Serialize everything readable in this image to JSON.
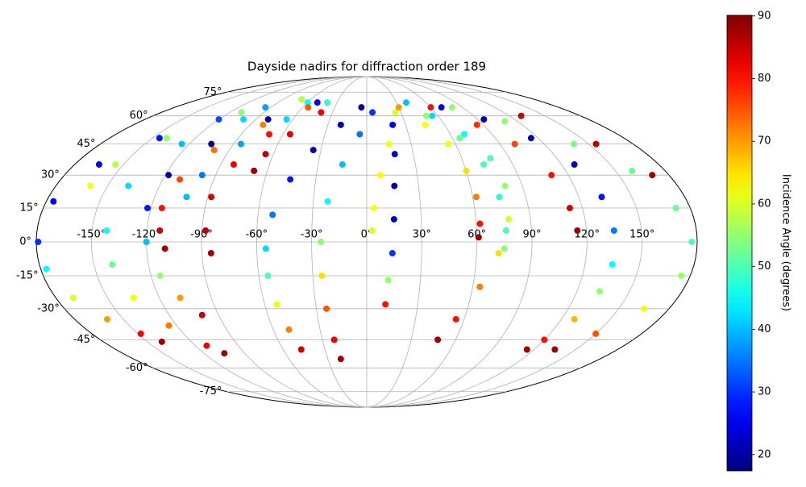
{
  "chart_data": {
    "type": "scatter",
    "projection": "mollweide",
    "colormap": "jet",
    "title": "Dayside nadirs for diffraction order 189",
    "colorbar_label": "Incidence Angle (degrees)",
    "clim": [
      17.4,
      90.1
    ],
    "cticks": [
      20,
      30,
      40,
      50,
      60,
      70,
      80,
      90
    ],
    "grid": true,
    "xticks": [
      {
        "value": -150,
        "label": "-150°"
      },
      {
        "value": -120,
        "label": "-120°"
      },
      {
        "value": -90,
        "label": "-90°"
      },
      {
        "value": -60,
        "label": "-60°"
      },
      {
        "value": -30,
        "label": "-30°"
      },
      {
        "value": 0,
        "label": "0°"
      },
      {
        "value": 30,
        "label": "30°"
      },
      {
        "value": 60,
        "label": "60°"
      },
      {
        "value": 90,
        "label": "90°"
      },
      {
        "value": 120,
        "label": "120°"
      },
      {
        "value": 150,
        "label": "150°"
      }
    ],
    "yticks": [
      {
        "value": -75,
        "label": "-75°"
      },
      {
        "value": -60,
        "label": "-60°"
      },
      {
        "value": -45,
        "label": "-45°"
      },
      {
        "value": -30,
        "label": "-30°"
      },
      {
        "value": -15,
        "label": "-15°"
      },
      {
        "value": 0,
        "label": "0°"
      },
      {
        "value": 15,
        "label": "15°"
      },
      {
        "value": 30,
        "label": "30°"
      },
      {
        "value": 45,
        "label": "45°"
      },
      {
        "value": 60,
        "label": "60°"
      },
      {
        "value": 75,
        "label": "75°"
      }
    ],
    "series": [
      {
        "x": [
          -95,
          -120,
          -145,
          -165,
          -176,
          -179,
          -177,
          -170,
          -160,
          -148,
          -140
        ],
        "y": [
          65,
          58,
          48,
          35,
          18,
          0,
          -12,
          -25,
          -35,
          -42,
          -46
        ],
        "values": [
          38,
          32,
          28,
          26,
          26,
          30,
          45,
          60,
          70,
          82,
          88
        ]
      },
      {
        "x": [
          -70,
          -110,
          -140,
          -155,
          -160
        ],
        "y": [
          70,
          62,
          48,
          35,
          25
        ],
        "values": [
          58,
          55,
          55,
          58,
          62
        ]
      },
      {
        "x": [
          -60,
          -100,
          -125,
          -138,
          -142,
          -140,
          -135,
          -125,
          -112,
          -105
        ],
        "y": [
          68,
          58,
          45,
          25,
          5,
          -10,
          -25,
          -38,
          -48,
          -52
        ],
        "values": [
          45,
          42,
          40,
          42,
          45,
          52,
          62,
          72,
          82,
          88
        ]
      },
      {
        "x": [
          -50,
          -80,
          -105,
          -118,
          -122,
          -120,
          -115,
          -108,
          -100
        ],
        "y": [
          68,
          58,
          45,
          30,
          15,
          0,
          -15,
          -25,
          -33
        ],
        "values": [
          25,
          20,
          18,
          20,
          28,
          40,
          55,
          70,
          85
        ]
      },
      {
        "x": [
          -55,
          -80,
          -100,
          -110,
          -114,
          -113,
          -110
        ],
        "y": [
          65,
          55,
          42,
          28,
          15,
          5,
          -3
        ],
        "values": [
          75,
          72,
          73,
          76,
          80,
          85,
          88
        ]
      },
      {
        "x": [
          -40,
          -65,
          -85,
          -98,
          -102
        ],
        "y": [
          68,
          58,
          45,
          30,
          20
        ],
        "values": [
          48,
          42,
          38,
          35,
          40
        ]
      },
      {
        "x": [
          -70,
          -82,
          -88,
          -88,
          -85
        ],
        "y": [
          50,
          35,
          20,
          5,
          -5
        ],
        "values": [
          80,
          82,
          84,
          86,
          88
        ]
      },
      {
        "x": [
          -40,
          -55,
          -65,
          -68
        ],
        "y": [
          62,
          50,
          40,
          32
        ],
        "values": [
          82,
          83,
          86,
          88
        ]
      },
      {
        "x": [
          -5,
          -20,
          -35,
          -45,
          -52,
          -55,
          -55,
          -53,
          -50,
          -47
        ],
        "y": [
          65,
          55,
          42,
          28,
          12,
          -3,
          -15,
          -28,
          -40,
          -50
        ],
        "values": [
          20,
          20,
          22,
          28,
          35,
          42,
          50,
          62,
          72,
          85
        ]
      },
      {
        "x": [
          5,
          -5,
          -15,
          -22,
          -25,
          -25,
          -24,
          -22,
          -20
        ],
        "y": [
          62,
          50,
          35,
          18,
          0,
          -15,
          -30,
          -45,
          -55
        ],
        "values": [
          30,
          35,
          40,
          45,
          55,
          65,
          75,
          82,
          88
        ]
      },
      {
        "x": [
          20,
          18,
          16,
          15,
          14,
          12,
          11
        ],
        "y": [
          55,
          40,
          25,
          10,
          -5,
          -17,
          -28
        ],
        "values": [
          25,
          22,
          20,
          22,
          30,
          55,
          80
        ]
      },
      {
        "x": [
          25,
          15,
          8,
          4,
          3
        ],
        "y": [
          62,
          45,
          30,
          15,
          5
        ],
        "values": [
          60,
          62,
          63,
          62,
          60
        ]
      },
      {
        "x": [
          40,
          55,
          70,
          78,
          80,
          78,
          72,
          64,
          55,
          48
        ],
        "y": [
          68,
          60,
          50,
          38,
          25,
          10,
          -5,
          -20,
          -35,
          -45
        ],
        "values": [
          40,
          42,
          45,
          50,
          55,
          60,
          65,
          72,
          80,
          88
        ]
      },
      {
        "x": [
          30,
          45,
          55,
          60,
          62,
          62,
          61
        ],
        "y": [
          65,
          55,
          45,
          32,
          20,
          8,
          2
        ],
        "values": [
          70,
          62,
          62,
          65,
          72,
          80,
          88
        ]
      },
      {
        "x": [
          70,
          95,
          115,
          128,
          133,
          135,
          135,
          133,
          128,
          120,
          115
        ],
        "y": [
          65,
          58,
          48,
          35,
          20,
          5,
          -10,
          -22,
          -35,
          -45,
          -50
        ],
        "values": [
          25,
          22,
          20,
          22,
          28,
          35,
          45,
          55,
          68,
          80,
          88
        ]
      },
      {
        "x": [
          80,
          110,
          140,
          160,
          172,
          177,
          175,
          165,
          150,
          135
        ],
        "y": [
          65,
          57,
          45,
          32,
          15,
          0,
          -15,
          -30,
          -42,
          -50
        ],
        "values": [
          55,
          55,
          53,
          52,
          52,
          50,
          55,
          62,
          75,
          88
        ]
      },
      {
        "x": [
          60,
          85,
          100,
          110,
          113,
          115
        ],
        "y": [
          65,
          55,
          45,
          30,
          15,
          5
        ],
        "values": [
          80,
          78,
          76,
          80,
          84,
          88
        ]
      },
      {
        "x": [
          50,
          65,
          72,
          75,
          76,
          75
        ],
        "y": [
          60,
          48,
          35,
          20,
          5,
          -3
        ],
        "values": [
          55,
          52,
          50,
          48,
          50,
          55
        ]
      },
      {
        "x": [
          130,
          155,
          170
        ],
        "y": [
          60,
          45,
          30
        ],
        "values": [
          85,
          86,
          88
        ]
      }
    ]
  }
}
